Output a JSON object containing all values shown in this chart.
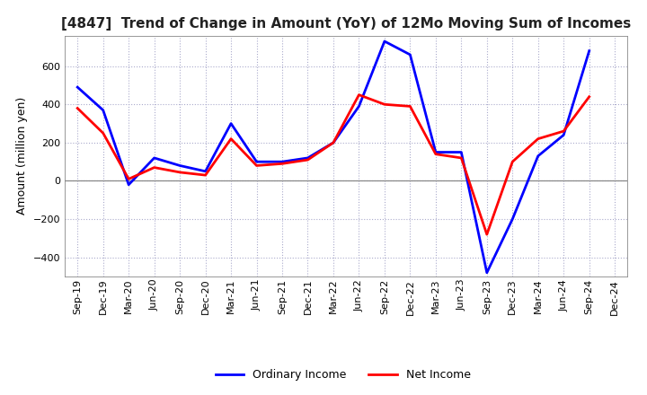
{
  "title": "[4847]  Trend of Change in Amount (YoY) of 12Mo Moving Sum of Incomes",
  "ylabel": "Amount (million yen)",
  "x_labels": [
    "Sep-19",
    "Dec-19",
    "Mar-20",
    "Jun-20",
    "Sep-20",
    "Dec-20",
    "Mar-21",
    "Jun-21",
    "Sep-21",
    "Dec-21",
    "Mar-22",
    "Jun-22",
    "Sep-22",
    "Dec-22",
    "Mar-23",
    "Jun-23",
    "Sep-23",
    "Dec-23",
    "Mar-24",
    "Jun-24",
    "Sep-24",
    "Dec-24"
  ],
  "ordinary_income": [
    490,
    370,
    -20,
    120,
    80,
    50,
    300,
    100,
    100,
    120,
    200,
    390,
    730,
    660,
    150,
    150,
    -480,
    -200,
    130,
    240,
    680,
    null
  ],
  "net_income": [
    380,
    250,
    10,
    70,
    45,
    30,
    220,
    80,
    90,
    110,
    200,
    450,
    400,
    390,
    140,
    120,
    -280,
    100,
    220,
    260,
    440,
    null
  ],
  "ylim": [
    -500,
    760
  ],
  "yticks": [
    -400,
    -200,
    0,
    200,
    400,
    600
  ],
  "line_color_ordinary": "#0000ff",
  "line_color_net": "#ff0000",
  "grid_color": "#aaaacc",
  "zero_line_color": "#888888",
  "background_color": "#ffffff",
  "legend_ordinary": "Ordinary Income",
  "legend_net": "Net Income",
  "title_fontsize": 11,
  "ylabel_fontsize": 9,
  "tick_fontsize": 8,
  "legend_fontsize": 9,
  "linewidth": 2.0
}
